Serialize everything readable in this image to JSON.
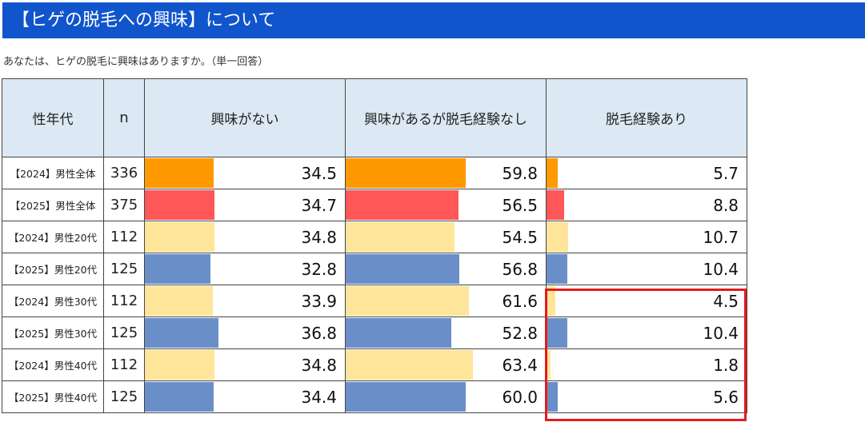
{
  "title": "【ヒゲの脱毛への興味】について",
  "question": "あなたは、ヒゲの脱毛に興味はありますか。（単一回答）",
  "colors": {
    "title_bg": "#1155CC",
    "header_bg": "#DCE8F3",
    "highlight": "#E31B1B",
    "orange": "#FF9900",
    "red": "#FF5757",
    "light_yellow": "#FFE599",
    "blue": "#6A8FC8"
  },
  "chart_data": {
    "type": "table",
    "headers": {
      "segment": "性年代",
      "n": "n"
    },
    "columns": [
      "興味がない",
      "興味があるが脱毛経験なし",
      "脱毛経験あり"
    ],
    "xlim": [
      0,
      100
    ],
    "rows": [
      {
        "label": "【2024】男性全体",
        "n": "336",
        "values": [
          34.5,
          59.8,
          5.7
        ],
        "color": "#FF9900"
      },
      {
        "label": "【2025】男性全体",
        "n": "375",
        "values": [
          34.7,
          56.5,
          8.8
        ],
        "color": "#FF5757"
      },
      {
        "label": "【2024】男性20代",
        "n": "112",
        "values": [
          34.8,
          54.5,
          10.7
        ],
        "color": "#FFE599"
      },
      {
        "label": "【2025】男性20代",
        "n": "125",
        "values": [
          32.8,
          56.8,
          10.4
        ],
        "color": "#6A8FC8"
      },
      {
        "label": "【2024】男性30代",
        "n": "112",
        "values": [
          33.9,
          61.6,
          4.5
        ],
        "color": "#FFE599"
      },
      {
        "label": "【2025】男性30代",
        "n": "125",
        "values": [
          36.8,
          52.8,
          10.4
        ],
        "color": "#6A8FC8"
      },
      {
        "label": "【2024】男性40代",
        "n": "112",
        "values": [
          34.8,
          63.4,
          1.8
        ],
        "color": "#FFE599"
      },
      {
        "label": "【2025】男性40代",
        "n": "125",
        "values": [
          34.4,
          60.0,
          5.6
        ],
        "color": "#6A8FC8"
      }
    ],
    "highlight": {
      "column": "脱毛経験あり",
      "rows": [
        "【2024】男性30代",
        "【2025】男性30代",
        "【2024】男性40代",
        "【2025】男性40代"
      ]
    }
  }
}
